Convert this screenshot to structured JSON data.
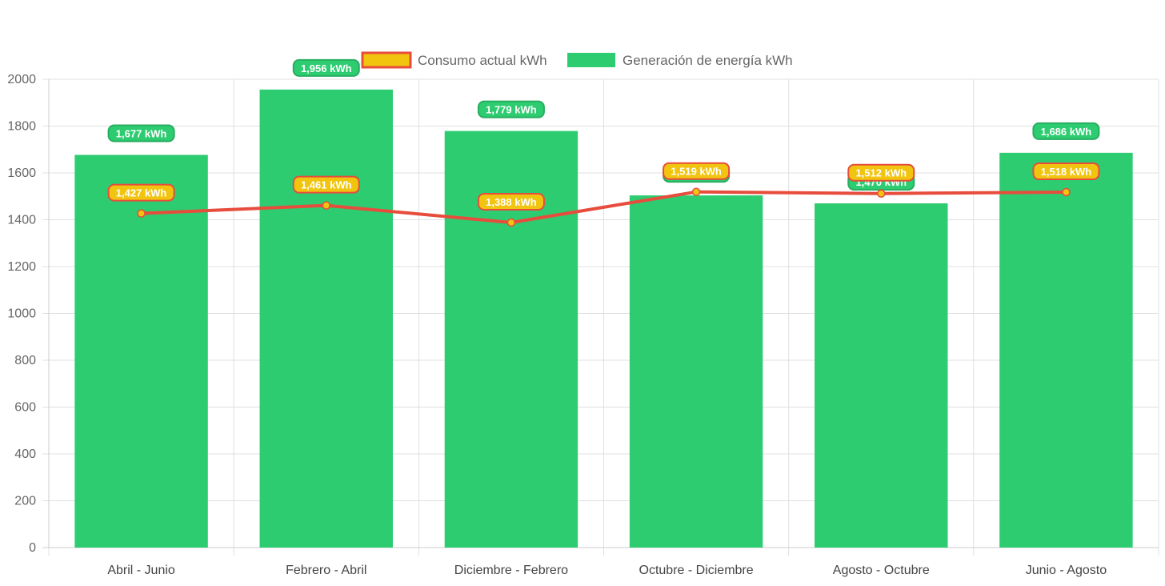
{
  "chart_data": {
    "type": "bar",
    "categories": [
      "Abril - Junio",
      "Febrero - Abril",
      "Diciembre - Febrero",
      "Octubre - Diciembre",
      "Agosto - Octubre",
      "Junio - Agosto"
    ],
    "ylim": [
      0,
      2000
    ],
    "yticks": [
      0,
      200,
      400,
      600,
      800,
      1000,
      1200,
      1400,
      1600,
      1800,
      2000
    ],
    "grid": true,
    "legend_position": "top",
    "series": [
      {
        "name": "Consumo actual kWh",
        "type": "line",
        "values": [
          1427,
          1461,
          1388,
          1519,
          1512,
          1518
        ],
        "labels": [
          "1,427 kWh",
          "1,461 kWh",
          "1,388 kWh",
          "1,519 kWh",
          "1,512 kWh",
          "1,518 kWh"
        ],
        "color": "#e74c3c",
        "fill": "#f1c40f"
      },
      {
        "name": "Generación de energía kWh",
        "type": "bar",
        "values": [
          1677,
          1956,
          1779,
          1504,
          1470,
          1686
        ],
        "labels": [
          "1,677 kWh",
          "1,956 kWh",
          "1,779 kWh",
          "1,504 kWh",
          "1,470 kWh",
          "1,686 kWh"
        ],
        "color": "#2ecc71"
      }
    ]
  }
}
